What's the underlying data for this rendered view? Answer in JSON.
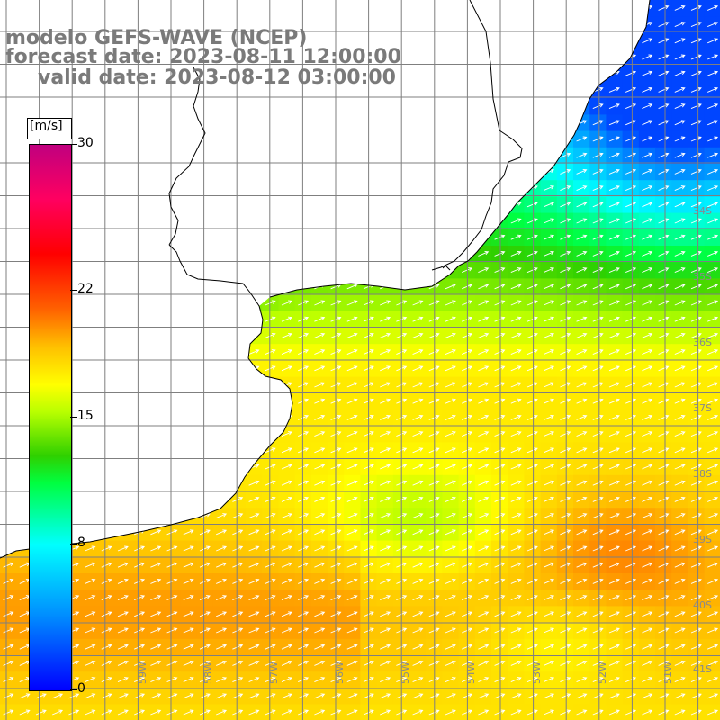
{
  "title_lines": {
    "model": "modelo GEFS-WAVE (NCEP)",
    "forecast": "forecast date: 2023-08-11 12:00:00",
    "valid": "valid date: 2023-08-12 03:00:00"
  },
  "colorbar": {
    "units": "[m/s]",
    "min": 0,
    "max": 30,
    "ticks": [
      {
        "value": 30,
        "label": "30"
      },
      {
        "value": 22,
        "label": "22"
      },
      {
        "value": 15,
        "label": "15"
      },
      {
        "value": 8,
        "label": "8"
      },
      {
        "value": 0,
        "label": "0"
      }
    ]
  },
  "latitude_labels": [
    "34S",
    "35S",
    "36S",
    "37S",
    "38S",
    "39S",
    "40S",
    "41S"
  ],
  "longitude_labels": [
    "59W",
    "58W",
    "57W",
    "56W",
    "55W",
    "54W",
    "53W",
    "52W",
    "51W"
  ],
  "colors": {
    "land": "#ffffff",
    "grid": "#7f7f7f",
    "coast": "#000000",
    "arrow": "#ffffff",
    "title": "#7a7a7a"
  },
  "wind_direction": "from west-southwest toward east-northeast"
}
